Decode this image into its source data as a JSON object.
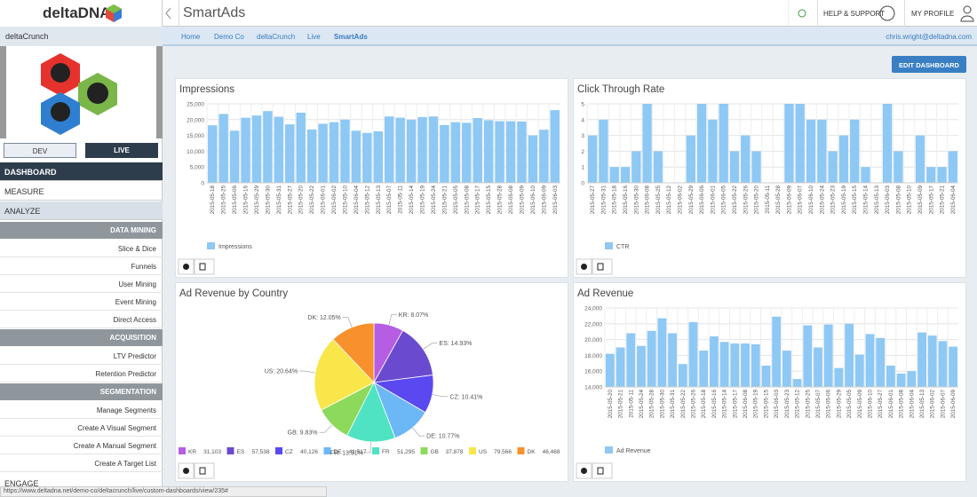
{
  "sidebar": {
    "logo": "deltaDNA",
    "game": "deltaCrunch",
    "env": [
      "DEV",
      "LIVE"
    ],
    "nav": [
      "DASHBOARD",
      "MEASURE",
      "ANALYZE"
    ],
    "sections": [
      {
        "title": "DATA MINING",
        "items": [
          "Slice & Dice",
          "Funnels",
          "User Mining",
          "Event Mining",
          "Direct Access"
        ]
      },
      {
        "title": "ACQUISITION",
        "items": [
          "LTV Predictor",
          "Retention Predictor"
        ]
      },
      {
        "title": "SEGMENTATION",
        "items": [
          "Manage Segments",
          "Create A Visual Segment",
          "Create A Manual Segment",
          "Create A Target List"
        ]
      }
    ],
    "engage": "ENGAGE"
  },
  "header": {
    "title": "SmartAds",
    "help": "HELP & SUPPORT",
    "profile": "MY PROFILE"
  },
  "breadcrumb": [
    "Home",
    "Demo Co",
    "deltaCrunch",
    "Live",
    "SmartAds"
  ],
  "user": "chris.wright@deltadna.com",
  "edit_button": "EDIT DASHBOARD",
  "status_url": "https://www.deltadna.net/demo-co/deltacrunch/live/custom-dashboards/view/235#",
  "chart_data": [
    {
      "type": "bar",
      "title": "Impressions",
      "grid": true,
      "ylim": [
        0,
        25000
      ],
      "yticks": [
        0,
        {
          "value": 5000,
          "label": "5,000"
        },
        {
          "value": 10000,
          "label": "10,000"
        },
        {
          "value": 15000,
          "label": "15,000"
        },
        {
          "value": 20000,
          "label": "20,000"
        },
        {
          "value": 25000,
          "label": "25,000"
        }
      ],
      "categories": [
        "2015-05-18",
        "2015-05-25",
        "2015-05-06",
        "2015-05-16",
        "2015-05-29",
        "2015-05-30",
        "2015-05-31",
        "2015-05-27",
        "2015-05-20",
        "2015-05-22",
        "2015-06-01",
        "2015-06-02",
        "2015-05-10",
        "2015-06-04",
        "2015-05-12",
        "2015-05-13",
        "2015-05-07",
        "2015-05-11",
        "2015-05-14",
        "2015-05-19",
        "2015-05-24",
        "2015-05-21",
        "2015-05-05",
        "2015-05-08",
        "2015-05-17",
        "2015-05-15",
        "2015-05-28",
        "2015-06-08",
        "2015-05-09",
        "2015-06-10",
        "2015-06-09",
        "2015-06-03"
      ],
      "series": [
        {
          "name": "Impressions",
          "color": "#8ec8f5",
          "values": [
            18200,
            21800,
            16500,
            20600,
            21300,
            22700,
            20900,
            18500,
            22200,
            16900,
            18700,
            19200,
            20000,
            16500,
            15800,
            16300,
            21000,
            20600,
            20000,
            20800,
            21000,
            18300,
            19200,
            19000,
            20500,
            19800,
            19500,
            19500,
            19400,
            15000,
            16800,
            23000
          ]
        }
      ]
    },
    {
      "type": "bar",
      "title": "Click Through Rate",
      "grid": true,
      "ylim": [
        0,
        5
      ],
      "yticks": [
        0,
        1,
        2,
        3,
        4,
        5
      ],
      "categories": [
        "2015-05-27",
        "2015-05-31",
        "2015-05-18",
        "2015-05-16",
        "2015-05-30",
        "2015-06-08",
        "2015-05-25",
        "2015-05-12",
        "2015-06-02",
        "2015-05-29",
        "2015-06-06",
        "2015-06-01",
        "2015-06-05",
        "2015-05-22",
        "2015-05-26",
        "2015-05-20",
        "2015-05-11",
        "2015-05-28",
        "2015-06-09",
        "2015-06-07",
        "2015-06-10",
        "2015-05-24",
        "2015-05-23",
        "2015-05-19",
        "2015-05-15",
        "2015-05-14",
        "2015-05-13",
        "2015-06-03",
        "2015-05-08",
        "2015-05-10",
        "2015-05-09",
        "2015-05-17",
        "2015-05-21",
        "2015-06-04"
      ],
      "series": [
        {
          "name": "CTR",
          "color": "#8ec8f5",
          "values": [
            3,
            4,
            1,
            1,
            2,
            5,
            2,
            0,
            0,
            3,
            5,
            4,
            5,
            2,
            3,
            2,
            0,
            0,
            5,
            5,
            4,
            4,
            2,
            3,
            4,
            1,
            0,
            5,
            2,
            0,
            3,
            1,
            1,
            2
          ]
        }
      ]
    },
    {
      "type": "pie",
      "title": "Ad Revenue by Country",
      "categories": [
        "KR",
        "ES",
        "CZ",
        "DE",
        "FR",
        "GB",
        "US",
        "DK"
      ],
      "values": [
        31103,
        57538,
        40126,
        41517,
        51295,
        37878,
        79566,
        46468
      ],
      "value_labels": [
        "31,103",
        "57,538",
        "40,126",
        "41,517",
        "51,295",
        "37,878",
        "79,566",
        "46,468"
      ],
      "slice_labels": [
        "KR: 8.07%",
        "ES: 14.93%",
        "CZ: 10.41%",
        "DE: 10.77%",
        "FR: 13.31%",
        "GB: 9.83%",
        "US: 20.64%",
        "DK: 12.05%"
      ],
      "colors": [
        "#b55de3",
        "#6a4bcf",
        "#5a48f0",
        "#6cb7f6",
        "#4fe3c3",
        "#8cd95c",
        "#f8e64a",
        "#f8902c"
      ]
    },
    {
      "type": "bar",
      "title": "Ad Revenue",
      "grid": true,
      "ylim": [
        14000,
        24000
      ],
      "yticks": [
        {
          "value": 14000,
          "label": "14,000"
        },
        {
          "value": 16000,
          "label": "16,000"
        },
        {
          "value": 18000,
          "label": "18,000"
        },
        {
          "value": 20000,
          "label": "20,000"
        },
        {
          "value": 22000,
          "label": "22,000"
        },
        {
          "value": 24000,
          "label": "24,000"
        }
      ],
      "categories": [
        "2015-05-20",
        "2015-05-21",
        "2015-05-11",
        "2015-05-24",
        "2015-05-28",
        "2015-05-30",
        "2015-05-31",
        "2015-05-22",
        "2015-05-26",
        "2015-05-18",
        "2015-05-16",
        "2015-05-14",
        "2015-05-17",
        "2015-06-08",
        "2015-05-19",
        "2015-05-15",
        "2015-06-03",
        "2015-05-23",
        "2015-05-12",
        "2015-05-25",
        "2015-05-07",
        "2015-05-06",
        "2015-05-29",
        "2015-05-05",
        "2015-05-09",
        "2015-06-10",
        "2015-05-27",
        "2015-06-01",
        "2015-05-08",
        "2015-06-04",
        "2015-05-13",
        "2015-06-02",
        "2015-06-07",
        "2015-06-09"
      ],
      "series": [
        {
          "name": "Ad Revenue",
          "color": "#8ec8f5",
          "values": [
            18200,
            19000,
            20800,
            19200,
            21100,
            22700,
            20800,
            16900,
            22200,
            18600,
            20400,
            19700,
            19500,
            19500,
            19400,
            16700,
            22900,
            18600,
            15000,
            21800,
            19000,
            21900,
            16400,
            22000,
            18100,
            20700,
            20200,
            16700,
            15700,
            16000,
            20900,
            20500,
            19800,
            19100
          ]
        }
      ]
    }
  ]
}
